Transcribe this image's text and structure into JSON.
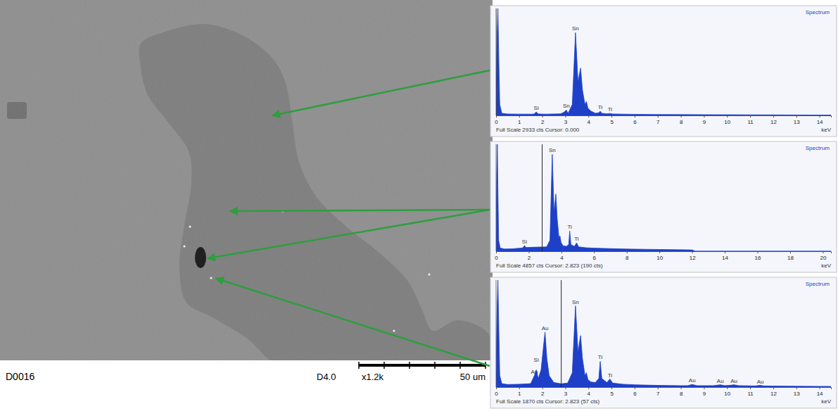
{
  "image": {
    "id": "D0016",
    "detector": "D4.0",
    "magnification": "x1.2k",
    "scale_bar": "50 um"
  },
  "chart_data": [
    {
      "type": "area",
      "title": "Spectrum",
      "color": "#1e40c8",
      "tick_labels": "x",
      "x_label": "keV",
      "footer": "Full Scale 2933 cts Cursor: 0.000",
      "cursor": 0,
      "xlim": [
        0,
        14.5
      ],
      "xticks": [
        0,
        1,
        2,
        3,
        4,
        5,
        6,
        7,
        8,
        9,
        10,
        11,
        12,
        13,
        14
      ],
      "ylim": [
        0,
        2933
      ],
      "x": [
        0,
        0.04,
        0.08,
        0.12,
        0.16,
        0.25,
        0.5,
        1.0,
        1.5,
        1.65,
        1.74,
        1.83,
        2.2,
        2.8,
        2.95,
        3.04,
        3.12,
        3.3,
        3.44,
        3.55,
        3.6,
        3.66,
        3.74,
        3.85,
        3.91,
        3.98,
        4.1,
        4.3,
        4.45,
        4.51,
        4.58,
        4.8,
        4.93,
        5.05,
        5.5,
        6,
        7,
        8,
        9,
        10,
        11,
        12,
        13,
        14,
        14.5
      ],
      "values": [
        300,
        2100,
        2933,
        1500,
        300,
        60,
        40,
        35,
        35,
        40,
        95,
        40,
        35,
        45,
        90,
        150,
        60,
        300,
        2270,
        900,
        1100,
        1300,
        700,
        300,
        380,
        200,
        120,
        60,
        70,
        115,
        60,
        45,
        55,
        40,
        35,
        30,
        25,
        22,
        20,
        18,
        16,
        14,
        12,
        10,
        10
      ],
      "annotations": [
        {
          "text": "Si",
          "x": 1.74
        },
        {
          "text": "Sn",
          "x": 3.04
        },
        {
          "text": "Sn",
          "x": 3.44
        },
        {
          "text": "Ti",
          "x": 4.51
        },
        {
          "text": "Ti",
          "x": 4.93
        }
      ]
    },
    {
      "type": "area",
      "title": "Spectrum",
      "color": "#1e40c8",
      "tick_labels": "x",
      "x_label": "keV",
      "footer": "Full Scale 4857 cts Cursor: 2.823 (190 cts)",
      "cursor": 2.823,
      "xlim": [
        0,
        20.5
      ],
      "xticks": [
        0,
        2,
        4,
        6,
        8,
        10,
        12,
        14,
        16,
        18,
        20
      ],
      "ylim": [
        0,
        4857
      ],
      "x": [
        0,
        0.04,
        0.08,
        0.12,
        0.16,
        0.25,
        0.5,
        1.0,
        1.5,
        1.65,
        1.74,
        1.83,
        2.2,
        2.6,
        2.823,
        3.1,
        3.3,
        3.44,
        3.55,
        3.6,
        3.66,
        3.74,
        3.85,
        3.91,
        3.98,
        4.1,
        4.3,
        4.45,
        4.51,
        4.58,
        4.8,
        4.93,
        5.05,
        5.5,
        6,
        7,
        8,
        9,
        10,
        11,
        12,
        12.2,
        14,
        16,
        18,
        20,
        20.5
      ],
      "values": [
        500,
        3500,
        4857,
        2500,
        500,
        150,
        100,
        110,
        140,
        160,
        260,
        170,
        180,
        190,
        190,
        200,
        500,
        4400,
        1800,
        2100,
        2600,
        1500,
        600,
        700,
        400,
        250,
        220,
        300,
        920,
        300,
        220,
        380,
        200,
        160,
        140,
        120,
        100,
        90,
        80,
        70,
        60,
        0,
        0,
        0,
        0,
        0,
        0
      ],
      "annotations": [
        {
          "text": "Si",
          "x": 1.74
        },
        {
          "text": "Sn",
          "x": 3.44
        },
        {
          "text": "Ti",
          "x": 4.51
        },
        {
          "text": "Ti",
          "x": 4.93
        }
      ]
    },
    {
      "type": "area",
      "title": "Spectrum",
      "color": "#1e40c8",
      "tick_labels": "x",
      "x_label": "keV",
      "footer": "Full Scale 1870 cts Cursor: 2.823 (57 cts)",
      "cursor": 2.823,
      "xlim": [
        0,
        14.5
      ],
      "xticks": [
        0,
        1,
        2,
        3,
        4,
        5,
        6,
        7,
        8,
        9,
        10,
        11,
        12,
        13,
        14
      ],
      "ylim": [
        0,
        1870
      ],
      "x": [
        0,
        0.04,
        0.08,
        0.12,
        0.16,
        0.25,
        0.5,
        1.0,
        1.5,
        1.66,
        1.74,
        1.83,
        1.95,
        2.05,
        2.12,
        2.2,
        2.3,
        2.5,
        2.823,
        3.1,
        3.3,
        3.44,
        3.55,
        3.6,
        3.66,
        3.74,
        3.85,
        3.91,
        3.98,
        4.1,
        4.3,
        4.45,
        4.51,
        4.58,
        4.8,
        4.93,
        5.05,
        5.5,
        6,
        7,
        8,
        8.3,
        8.49,
        8.7,
        9.4,
        9.71,
        9.9,
        10.1,
        10.3,
        10.5,
        11.2,
        11.44,
        11.6,
        12,
        13,
        14,
        14.5
      ],
      "values": [
        200,
        1300,
        1870,
        1000,
        200,
        60,
        45,
        50,
        60,
        200,
        300,
        150,
        300,
        700,
        960,
        500,
        200,
        80,
        57,
        70,
        250,
        1420,
        600,
        750,
        900,
        500,
        200,
        250,
        130,
        90,
        80,
        150,
        450,
        150,
        80,
        140,
        70,
        50,
        40,
        30,
        25,
        25,
        45,
        25,
        25,
        40,
        25,
        30,
        40,
        25,
        20,
        30,
        20,
        18,
        15,
        12,
        12
      ],
      "annotations": [
        {
          "text": "Au",
          "x": 1.66
        },
        {
          "text": "Si",
          "x": 1.74
        },
        {
          "text": "Au",
          "x": 2.12
        },
        {
          "text": "Sn",
          "x": 3.44
        },
        {
          "text": "Ti",
          "x": 4.51
        },
        {
          "text": "Ti",
          "x": 4.93
        },
        {
          "text": "Au",
          "x": 8.49
        },
        {
          "text": "Au",
          "x": 9.71
        },
        {
          "text": "Au",
          "x": 10.3
        },
        {
          "text": "Au",
          "x": 11.44
        }
      ]
    }
  ]
}
